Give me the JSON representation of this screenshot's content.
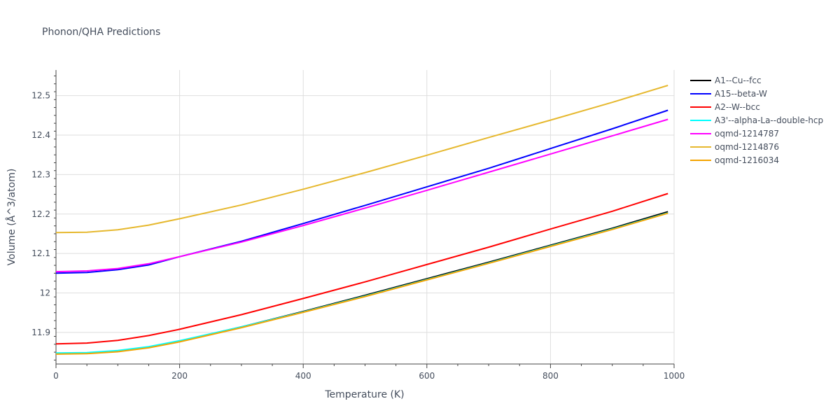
{
  "chart_data": {
    "type": "line",
    "title": "Phonon/QHA Predictions",
    "xlabel": "Temperature (K)",
    "ylabel": "Volume (Å^3/atom)",
    "xlim": [
      0,
      1000
    ],
    "ylim": [
      11.82,
      12.565
    ],
    "x_ticks": [
      0,
      200,
      400,
      600,
      800,
      1000
    ],
    "x_tick_labels": [
      "0",
      "200",
      "400",
      "600",
      "800",
      "1000"
    ],
    "y_ticks": [
      11.9,
      12.0,
      12.1,
      12.2,
      12.3,
      12.4,
      12.5
    ],
    "y_tick_labels": [
      "11.9",
      "12",
      "12.1",
      "12.2",
      "12.3",
      "12.4",
      "12.5"
    ],
    "grid": true,
    "legend": "top-right",
    "x": [
      0,
      50,
      100,
      150,
      200,
      300,
      400,
      500,
      600,
      700,
      800,
      900,
      990
    ],
    "series": [
      {
        "name": "A1--Cu--fcc",
        "color": "#000000",
        "values": [
          11.846,
          11.847,
          11.852,
          11.863,
          11.878,
          11.914,
          11.953,
          11.994,
          12.036,
          12.078,
          12.121,
          12.164,
          12.206
        ]
      },
      {
        "name": "A15--beta-W",
        "color": "#0000ff",
        "values": [
          12.05,
          12.052,
          12.059,
          12.071,
          12.092,
          12.131,
          12.176,
          12.222,
          12.269,
          12.316,
          12.366,
          12.416,
          12.463
        ]
      },
      {
        "name": "A2--W--bcc",
        "color": "#ff0000",
        "values": [
          11.871,
          11.873,
          11.88,
          11.892,
          11.908,
          11.945,
          11.986,
          12.028,
          12.072,
          12.116,
          12.162,
          12.207,
          12.252
        ]
      },
      {
        "name": "A3'--alpha-La--double-hcp",
        "color": "#00ffff",
        "values": [
          11.848,
          11.849,
          11.854,
          11.864,
          11.879,
          11.914,
          11.952,
          11.992,
          12.034,
          12.076,
          12.119,
          12.162,
          12.203
        ]
      },
      {
        "name": "oqmd-1214787",
        "color": "#ff00ff",
        "values": [
          12.054,
          12.056,
          12.062,
          12.074,
          12.092,
          12.129,
          12.171,
          12.215,
          12.26,
          12.306,
          12.352,
          12.398,
          12.44
        ]
      },
      {
        "name": "oqmd-1214876",
        "color": "#e6b82e",
        "values": [
          12.153,
          12.154,
          12.16,
          12.172,
          12.188,
          12.223,
          12.263,
          12.305,
          12.349,
          12.394,
          12.438,
          12.483,
          12.526
        ]
      },
      {
        "name": "oqmd-1216034",
        "color": "#f4a300",
        "values": [
          11.845,
          11.846,
          11.851,
          11.861,
          11.876,
          11.912,
          11.951,
          11.991,
          12.033,
          12.075,
          12.118,
          12.161,
          12.202
        ]
      }
    ]
  }
}
